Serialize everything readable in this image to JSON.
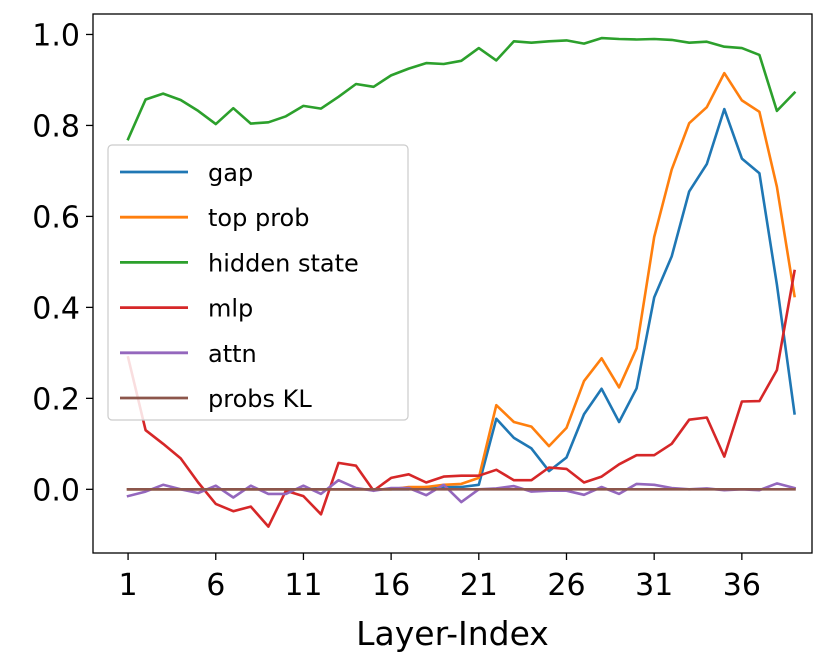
{
  "chart_data": {
    "type": "line",
    "xlabel": "Layer-Index",
    "ylabel": "",
    "xlim": [
      -1,
      40
    ],
    "ylim": [
      -0.14,
      1.045
    ],
    "xticks": [
      1,
      6,
      11,
      16,
      21,
      26,
      31,
      36
    ],
    "yticks": [
      0.0,
      0.2,
      0.4,
      0.6,
      0.8,
      1.0
    ],
    "ytick_labels": [
      "0.0",
      "0.2",
      "0.4",
      "0.6",
      "0.8",
      "1.0"
    ],
    "grid": false,
    "legend_position": "center-left",
    "x": [
      1,
      2,
      3,
      4,
      5,
      6,
      7,
      8,
      9,
      10,
      11,
      12,
      13,
      14,
      15,
      16,
      17,
      18,
      19,
      20,
      21,
      22,
      23,
      24,
      25,
      26,
      27,
      28,
      29,
      30,
      31,
      32,
      33,
      34,
      35,
      36,
      37,
      38,
      39
    ],
    "series": [
      {
        "name": "gap",
        "color": "#1f77b4",
        "values": [
          0,
          0,
          0,
          0,
          0,
          0,
          0,
          0,
          0,
          0,
          0,
          0,
          0,
          0,
          0,
          0,
          0,
          0.005,
          0.005,
          0.005,
          0.01,
          0.155,
          0.113,
          0.09,
          0.04,
          0.07,
          0.165,
          0.221,
          0.148,
          0.222,
          0.422,
          0.512,
          0.655,
          0.715,
          0.836,
          0.727,
          0.695,
          0.45,
          0.167
        ]
      },
      {
        "name": "top prob",
        "color": "#ff7f0e",
        "values": [
          0,
          0,
          0,
          0,
          0,
          0,
          0,
          0,
          0,
          0,
          0,
          0,
          0,
          0,
          0,
          0,
          0.005,
          0.005,
          0.01,
          0.012,
          0.025,
          0.185,
          0.148,
          0.138,
          0.095,
          0.135,
          0.238,
          0.288,
          0.224,
          0.31,
          0.555,
          0.703,
          0.805,
          0.84,
          0.915,
          0.855,
          0.83,
          0.665,
          0.425
        ]
      },
      {
        "name": "hidden state",
        "color": "#2ca02c",
        "values": [
          0.77,
          0.857,
          0.87,
          0.856,
          0.832,
          0.803,
          0.838,
          0.804,
          0.807,
          0.82,
          0.843,
          0.837,
          0.863,
          0.891,
          0.885,
          0.91,
          0.925,
          0.937,
          0.935,
          0.942,
          0.97,
          0.943,
          0.985,
          0.982,
          0.985,
          0.987,
          0.98,
          0.992,
          0.99,
          0.989,
          0.99,
          0.988,
          0.982,
          0.984,
          0.973,
          0.97,
          0.955,
          0.832,
          0.872
        ]
      },
      {
        "name": "mlp",
        "color": "#d62728",
        "values": [
          0.29,
          0.13,
          0.1,
          0.068,
          0.015,
          -0.032,
          -0.048,
          -0.038,
          -0.082,
          -0.003,
          -0.015,
          -0.055,
          0.058,
          0.052,
          -0.003,
          0.025,
          0.033,
          0.015,
          0.028,
          0.03,
          0.03,
          0.043,
          0.02,
          0.02,
          0.048,
          0.045,
          0.015,
          0.028,
          0.055,
          0.075,
          0.075,
          0.1,
          0.153,
          0.158,
          0.072,
          0.193,
          0.194,
          0.262,
          0.48
        ]
      },
      {
        "name": "attn",
        "color": "#9467bd",
        "values": [
          -0.015,
          -0.005,
          0.01,
          0,
          -0.008,
          0.008,
          -0.018,
          0.008,
          -0.01,
          -0.01,
          0.008,
          -0.01,
          0.02,
          0.003,
          -0.003,
          0.003,
          0.003,
          -0.013,
          0.01,
          -0.028,
          0,
          0.002,
          0.007,
          -0.005,
          -0.003,
          -0.003,
          -0.012,
          0.005,
          -0.01,
          0.012,
          0.01,
          0.003,
          0,
          0.002,
          -0.002,
          0,
          -0.002,
          0.013,
          0.003
        ]
      },
      {
        "name": "probs KL",
        "color": "#8c564b",
        "values": [
          0,
          0,
          0,
          0,
          0,
          0,
          0,
          0,
          0,
          0,
          0,
          0,
          0,
          0,
          0,
          0,
          0,
          0,
          0,
          0,
          0,
          0,
          0,
          0,
          0,
          0,
          0,
          0,
          0,
          0,
          0,
          0,
          0,
          0,
          0,
          0,
          0,
          0,
          0
        ]
      }
    ]
  }
}
